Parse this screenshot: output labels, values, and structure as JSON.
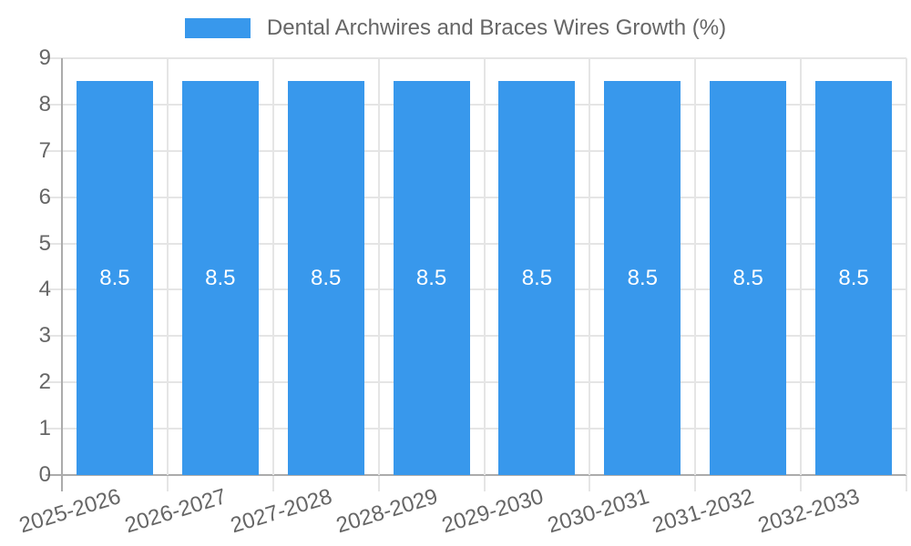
{
  "chart_data": {
    "type": "bar",
    "title": "",
    "xlabel": "",
    "ylabel": "",
    "categories": [
      "2025-2026",
      "2026-2027",
      "2027-2028",
      "2028-2029",
      "2029-2030",
      "2030-2031",
      "2031-2032",
      "2032-2033"
    ],
    "series": [
      {
        "name": "Dental Archwires and Braces Wires Growth (%)",
        "values": [
          8.5,
          8.5,
          8.5,
          8.5,
          8.5,
          8.5,
          8.5,
          8.5
        ]
      }
    ],
    "bar_value_labels": [
      "8.5",
      "8.5",
      "8.5",
      "8.5",
      "8.5",
      "8.5",
      "8.5",
      "8.5"
    ],
    "ylim": [
      0,
      9
    ],
    "ytick_step": 1,
    "ytick_labels": [
      "0",
      "1",
      "2",
      "3",
      "4",
      "5",
      "6",
      "7",
      "8",
      "9"
    ],
    "grid": true,
    "legend_position": "top",
    "colors": {
      "bar": "#3898ec",
      "bar_value_label": "#ffffff",
      "tick_label": "#666666",
      "legend_label": "#666666",
      "grid_line": "#e5e5e5",
      "axis_line": "#ababab",
      "background": "#ffffff"
    }
  }
}
